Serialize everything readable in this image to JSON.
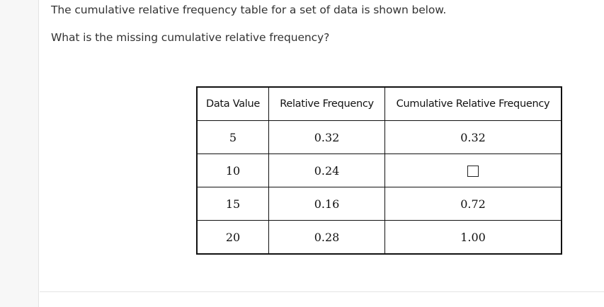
{
  "question": {
    "line1": "The cumulative relative frequency table for a set of data is shown below.",
    "line2": "What is the missing cumulative relative frequency?"
  },
  "table": {
    "headers": [
      "Data Value",
      "Relative Frequency",
      "Cumulative Relative Frequency"
    ],
    "rows": [
      {
        "data_value": "5",
        "relative_frequency": "0.32",
        "cumulative_relative_frequency": "0.32"
      },
      {
        "data_value": "10",
        "relative_frequency": "0.24",
        "cumulative_relative_frequency": ""
      },
      {
        "data_value": "15",
        "relative_frequency": "0.16",
        "cumulative_relative_frequency": "0.72"
      },
      {
        "data_value": "20",
        "relative_frequency": "0.28",
        "cumulative_relative_frequency": "1.00"
      }
    ]
  }
}
